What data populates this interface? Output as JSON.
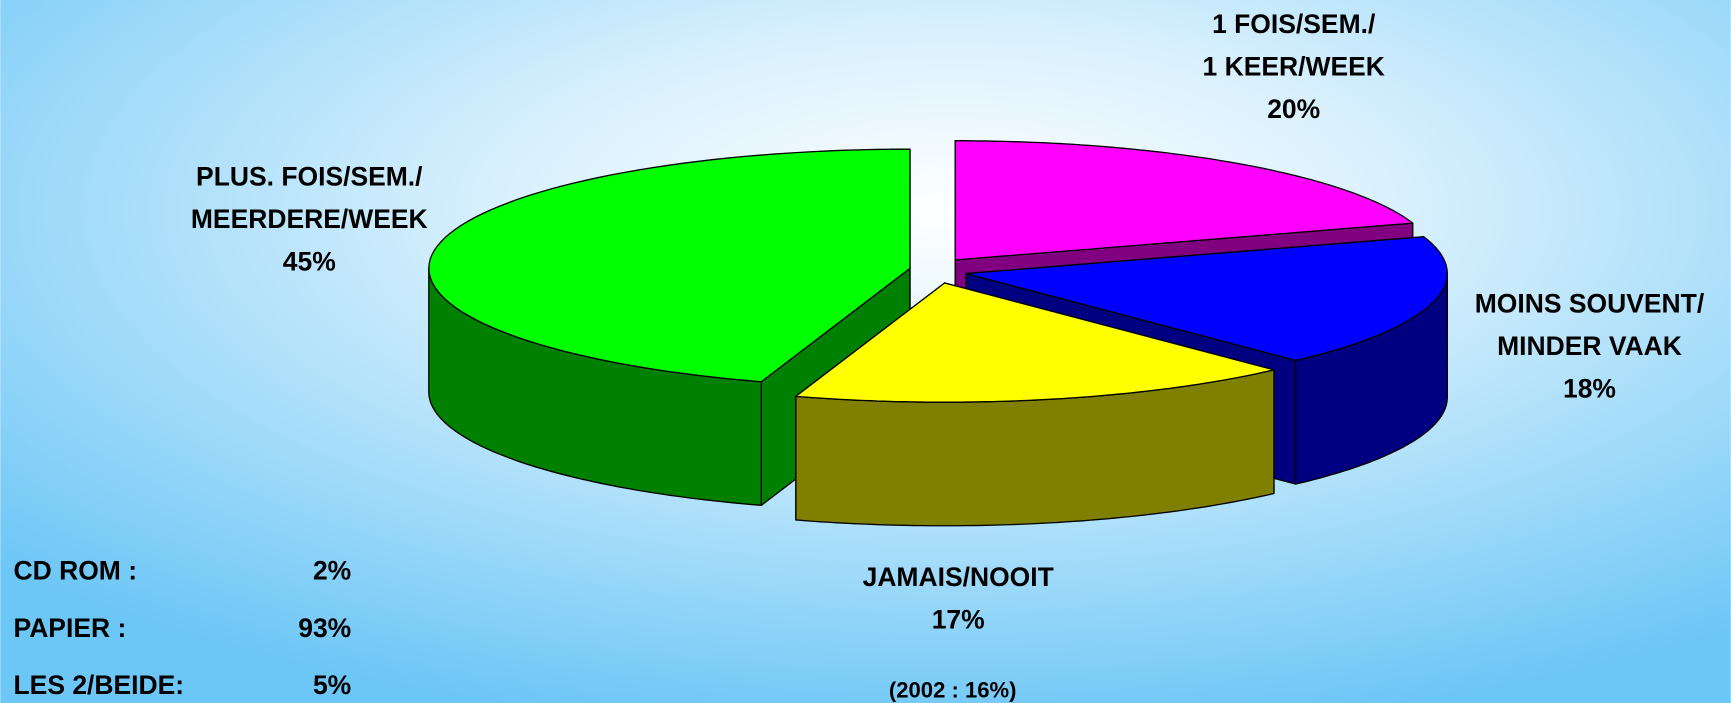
{
  "chart_data": {
    "type": "pie3d",
    "categories": [
      [
        "1 FOIS/SEM./",
        "1 KEER/WEEK"
      ],
      [
        "MOINS SOUVENT/",
        "MINDER VAAK"
      ],
      [
        "JAMAIS/NOOIT"
      ],
      [
        "PLUS. FOIS/SEM./",
        "MEERDERE/WEEK"
      ]
    ],
    "values": [
      20,
      18,
      17,
      45
    ],
    "value_labels": [
      "20%",
      "18%",
      "17%",
      "45%"
    ],
    "colors": [
      "#ff00ff",
      "#0000ff",
      "#ffff00",
      "#00ff00"
    ],
    "side_colors": [
      "#800080",
      "#000080",
      "#808000",
      "#008000"
    ],
    "annotation": "(2002 : 16%)",
    "media": [
      {
        "label": "CD ROM :",
        "value": 2,
        "value_label": "2%"
      },
      {
        "label": "PAPIER :",
        "value": 93,
        "value_label": "93%"
      },
      {
        "label": "LES 2/BEIDE:",
        "value": 5,
        "value_label": "5%"
      }
    ]
  }
}
